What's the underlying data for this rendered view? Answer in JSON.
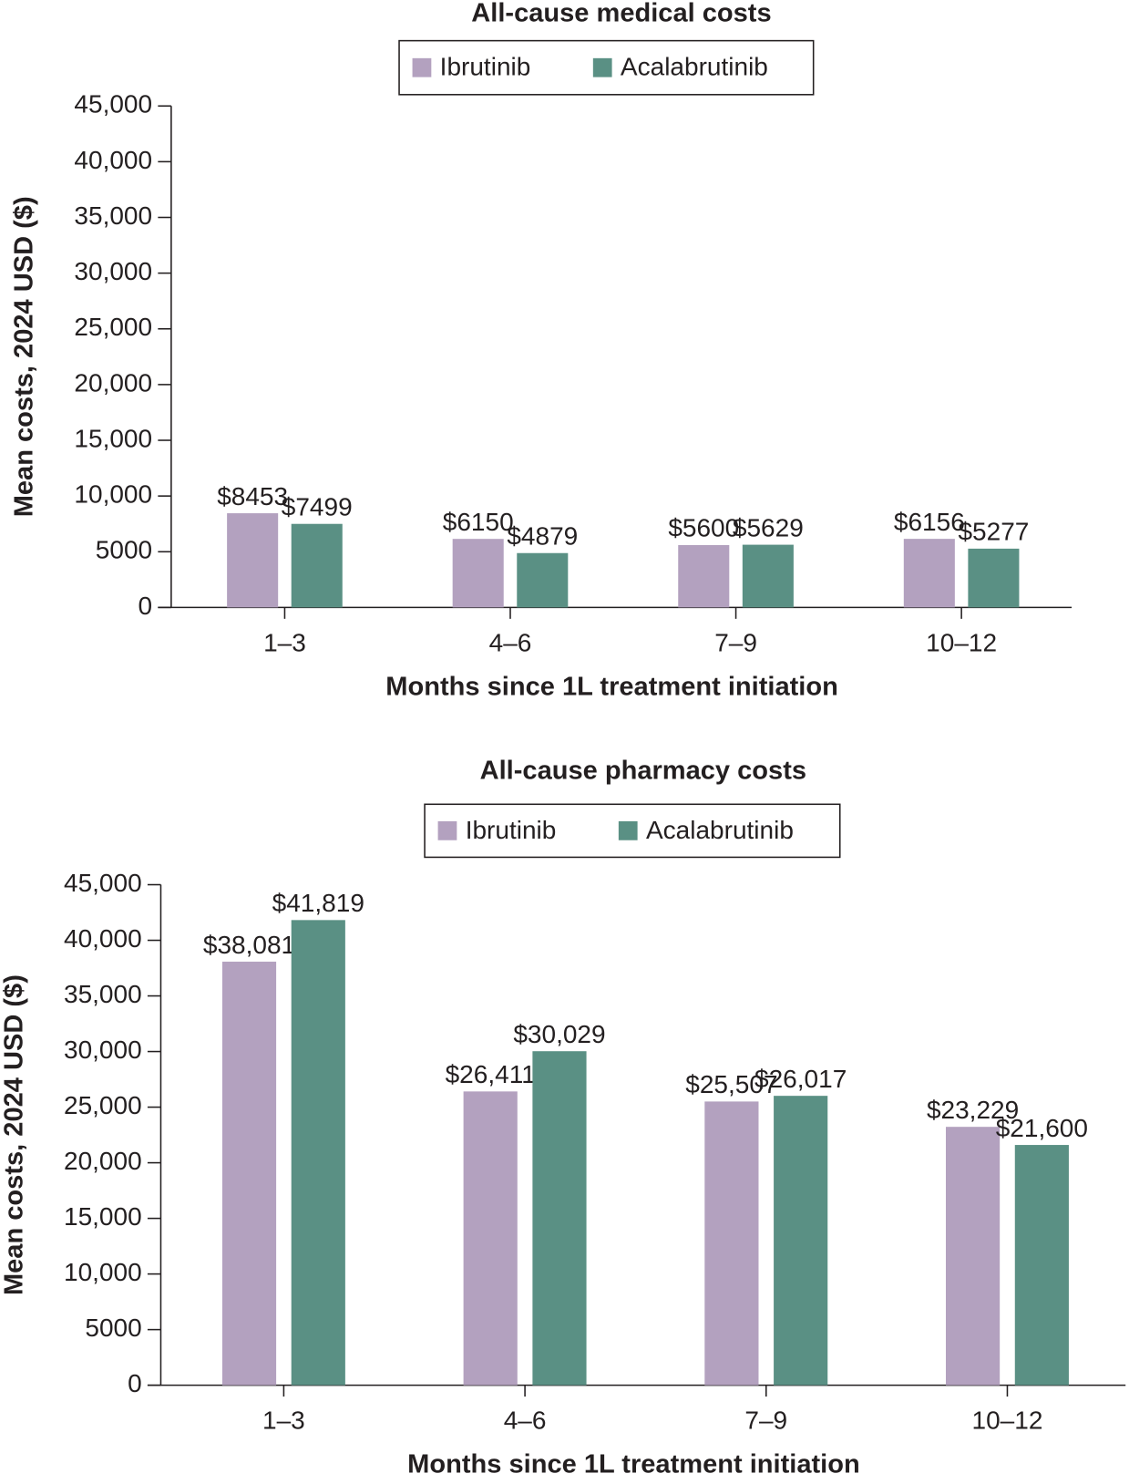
{
  "chart_data": [
    {
      "type": "bar",
      "title": "All-cause medical costs",
      "x_label": "Months since 1L treatment initiation",
      "y_label": "Mean costs, 2024 USD ($)",
      "categories": [
        "1–3",
        "4–6",
        "7–9",
        "10–12"
      ],
      "series": [
        {
          "name": "Ibrutinib",
          "color": "#b3a1bf",
          "values": [
            8453,
            6150,
            5600,
            6156
          ],
          "value_labels": [
            "$8453",
            "$6150",
            "$5600",
            "$6156"
          ]
        },
        {
          "name": "Acalabrutinib",
          "color": "#5a9084",
          "values": [
            7499,
            4879,
            5629,
            5277
          ],
          "value_labels": [
            "$7499",
            "$4879",
            "$5629",
            "$5277"
          ]
        }
      ],
      "ylim": [
        0,
        45000
      ],
      "yticks": [
        0,
        5000,
        {
          "value": 10000,
          "label": "10,000"
        },
        {
          "value": 15000,
          "label": "15,000"
        },
        {
          "value": 20000,
          "label": "20,000"
        },
        {
          "value": 25000,
          "label": "25,000"
        },
        {
          "value": 30000,
          "label": "30,000"
        },
        {
          "value": 35000,
          "label": "35,000"
        },
        {
          "value": 40000,
          "label": "40,000"
        },
        {
          "value": 45000,
          "label": "45,000"
        }
      ],
      "grid": false,
      "legend": "top"
    },
    {
      "type": "bar",
      "title": "All-cause pharmacy costs",
      "x_label": "Months since 1L treatment initiation",
      "y_label": "Mean costs, 2024 USD ($)",
      "categories": [
        "1–3",
        "4–6",
        "7–9",
        "10–12"
      ],
      "series": [
        {
          "name": "Ibrutinib",
          "color": "#b3a1bf",
          "values": [
            38081,
            26411,
            25507,
            23229
          ],
          "value_labels": [
            "$38,081",
            "$26,411",
            "$25,507",
            "$23,229"
          ]
        },
        {
          "name": "Acalabrutinib",
          "color": "#5a9084",
          "values": [
            41819,
            30029,
            26017,
            21600
          ],
          "value_labels": [
            "$41,819",
            "$30,029",
            "$26,017",
            "$21,600"
          ]
        }
      ],
      "ylim": [
        0,
        45000
      ],
      "yticks": [
        0,
        5000,
        {
          "value": 10000,
          "label": "10,000"
        },
        {
          "value": 15000,
          "label": "15,000"
        },
        {
          "value": 20000,
          "label": "20,000"
        },
        {
          "value": 25000,
          "label": "25,000"
        },
        {
          "value": 30000,
          "label": "30,000"
        },
        {
          "value": 35000,
          "label": "35,000"
        },
        {
          "value": 40000,
          "label": "40,000"
        },
        {
          "value": 45000,
          "label": "45,000"
        }
      ],
      "grid": false,
      "legend": "top"
    }
  ]
}
